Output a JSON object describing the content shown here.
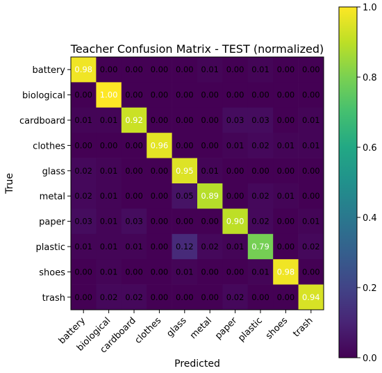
{
  "chart_data": {
    "type": "heatmap",
    "title": "Teacher Confusion Matrix - TEST (normalized)",
    "xlabel": "Predicted",
    "ylabel": "True",
    "x_categories": [
      "battery",
      "biological",
      "cardboard",
      "clothes",
      "glass",
      "metal",
      "paper",
      "plastic",
      "shoes",
      "trash"
    ],
    "y_categories": [
      "battery",
      "biological",
      "cardboard",
      "clothes",
      "glass",
      "metal",
      "paper",
      "plastic",
      "shoes",
      "trash"
    ],
    "values": [
      [
        0.98,
        0.0,
        0.0,
        0.0,
        0.0,
        0.01,
        0.0,
        0.01,
        0.0,
        0.0
      ],
      [
        0.0,
        1.0,
        0.0,
        0.0,
        0.0,
        0.0,
        0.0,
        0.0,
        0.0,
        0.0
      ],
      [
        0.01,
        0.01,
        0.92,
        0.0,
        0.0,
        0.0,
        0.03,
        0.03,
        0.0,
        0.01
      ],
      [
        0.0,
        0.0,
        0.0,
        0.96,
        0.0,
        0.0,
        0.01,
        0.02,
        0.01,
        0.01
      ],
      [
        0.02,
        0.01,
        0.0,
        0.0,
        0.95,
        0.01,
        0.0,
        0.0,
        0.0,
        0.0
      ],
      [
        0.02,
        0.01,
        0.0,
        0.0,
        0.05,
        0.89,
        0.0,
        0.02,
        0.01,
        0.0
      ],
      [
        0.03,
        0.01,
        0.03,
        0.0,
        0.0,
        0.0,
        0.9,
        0.02,
        0.0,
        0.01
      ],
      [
        0.01,
        0.01,
        0.01,
        0.0,
        0.12,
        0.02,
        0.01,
        0.79,
        0.0,
        0.02
      ],
      [
        0.0,
        0.01,
        0.0,
        0.0,
        0.01,
        0.0,
        0.0,
        0.01,
        0.98,
        0.0
      ],
      [
        0.0,
        0.02,
        0.02,
        0.0,
        0.0,
        0.0,
        0.02,
        0.0,
        0.0,
        0.94
      ]
    ],
    "colorbar": {
      "range": [
        0.0,
        1.0
      ],
      "ticks": [
        "0.0",
        "0.2",
        "0.4",
        "0.6",
        "0.8",
        "1.0"
      ],
      "colormap": "viridis"
    }
  }
}
